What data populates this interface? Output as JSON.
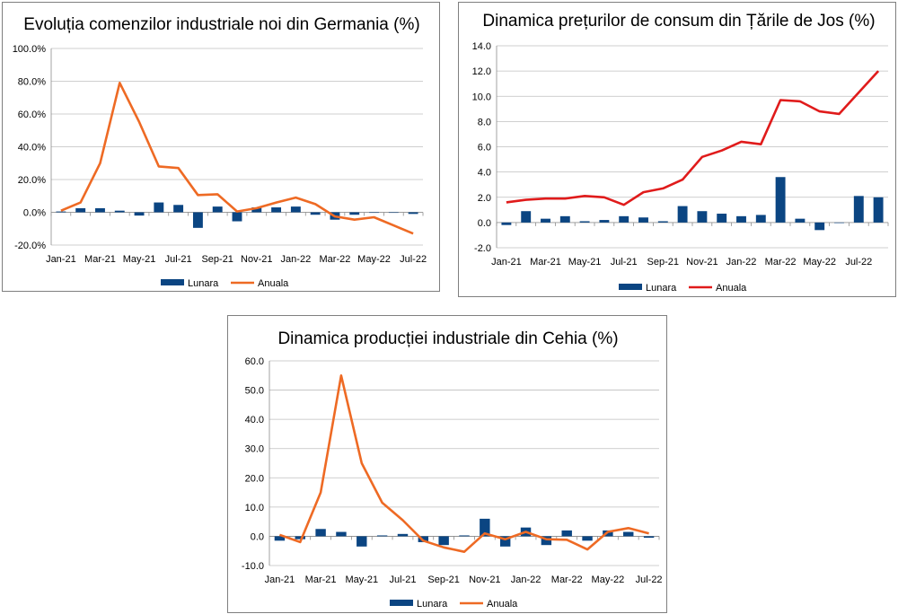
{
  "colors": {
    "bar": "#0b4582",
    "line_orange": "#ee6a24",
    "line_red": "#e01b1b",
    "grid": "#bfbfbf"
  },
  "legend": {
    "monthly": "Lunara",
    "annual": "Anuala"
  },
  "chart_data": [
    {
      "type": "bar+line",
      "title": "Evoluția comenzilor industriale noi din Germania (%)",
      "ylim": [
        -20,
        100
      ],
      "ystep": 20,
      "ytick_labels": [
        "-20.0%",
        "0.0%",
        "20.0%",
        "40.0%",
        "60.0%",
        "80.0%",
        "100.0%"
      ],
      "x_tick_labels": [
        "Jan-21",
        "Mar-21",
        "May-21",
        "Jul-21",
        "Sep-21",
        "Nov-21",
        "Jan-22",
        "Mar-22",
        "May-22",
        "Jul-22"
      ],
      "categories": [
        "Jan-21",
        "Feb-21",
        "Mar-21",
        "Apr-21",
        "May-21",
        "Jun-21",
        "Jul-21",
        "Aug-21",
        "Sep-21",
        "Oct-21",
        "Nov-21",
        "Dec-21",
        "Jan-22",
        "Feb-22",
        "Mar-22",
        "Apr-22",
        "May-22",
        "Jun-22",
        "Jul-22"
      ],
      "line_color": "line_orange",
      "series": [
        {
          "name": "Lunara",
          "kind": "bar",
          "values": [
            0.5,
            2.5,
            2.5,
            1.0,
            -2.0,
            6.0,
            4.5,
            -9.5,
            3.5,
            -5.5,
            3.0,
            3.0,
            3.5,
            -1.5,
            -4.5,
            -1.5,
            0.0,
            0.0,
            -1.0
          ]
        },
        {
          "name": "Anuala",
          "kind": "line",
          "values": [
            1.0,
            6.0,
            30.0,
            79.0,
            55.0,
            28.0,
            27.0,
            10.5,
            11.0,
            0.5,
            2.5,
            6.0,
            9.0,
            5.0,
            -2.5,
            -4.5,
            -3.0,
            -8.0,
            -13.0
          ]
        }
      ]
    },
    {
      "type": "bar+line",
      "title": "Dinamica prețurilor de consum din Țările de Jos (%)",
      "ylim": [
        -2,
        14
      ],
      "ystep": 2,
      "ytick_labels": [
        "-2.0",
        "0.0",
        "2.0",
        "4.0",
        "6.0",
        "8.0",
        "10.0",
        "12.0",
        "14.0"
      ],
      "x_tick_labels": [
        "Jan-21",
        "Mar-21",
        "May-21",
        "Jul-21",
        "Sep-21",
        "Nov-21",
        "Jan-22",
        "Mar-22",
        "May-22",
        "Jul-22"
      ],
      "categories": [
        "Jan-21",
        "Feb-21",
        "Mar-21",
        "Apr-21",
        "May-21",
        "Jun-21",
        "Jul-21",
        "Aug-21",
        "Sep-21",
        "Oct-21",
        "Nov-21",
        "Dec-21",
        "Jan-22",
        "Feb-22",
        "Mar-22",
        "Apr-22",
        "May-22",
        "Jun-22",
        "Jul-22",
        "Aug-22"
      ],
      "line_color": "line_red",
      "series": [
        {
          "name": "Lunara",
          "kind": "bar",
          "values": [
            -0.2,
            0.9,
            0.3,
            0.5,
            0.1,
            0.2,
            0.5,
            0.4,
            0.1,
            1.3,
            0.9,
            0.7,
            0.5,
            0.6,
            3.6,
            0.3,
            -0.6,
            0.0,
            2.1,
            2.0
          ]
        },
        {
          "name": "Anuala",
          "kind": "line",
          "values": [
            1.6,
            1.8,
            1.9,
            1.9,
            2.1,
            2.0,
            1.4,
            2.4,
            2.7,
            3.4,
            5.2,
            5.7,
            6.4,
            6.2,
            9.7,
            9.6,
            8.8,
            8.6,
            10.3,
            12.0
          ]
        }
      ]
    },
    {
      "type": "bar+line",
      "title": "Dinamica producției industriale din Cehia (%)",
      "ylim": [
        -10,
        60
      ],
      "ystep": 10,
      "ytick_labels": [
        "-10.0",
        "0.0",
        "10.0",
        "20.0",
        "30.0",
        "40.0",
        "50.0",
        "60.0"
      ],
      "x_tick_labels": [
        "Jan-21",
        "Mar-21",
        "May-21",
        "Jul-21",
        "Sep-21",
        "Nov-21",
        "Jan-22",
        "Mar-22",
        "May-22",
        "Jul-22"
      ],
      "categories": [
        "Jan-21",
        "Feb-21",
        "Mar-21",
        "Apr-21",
        "May-21",
        "Jun-21",
        "Jul-21",
        "Aug-21",
        "Sep-21",
        "Oct-21",
        "Nov-21",
        "Dec-21",
        "Jan-22",
        "Feb-22",
        "Mar-22",
        "Apr-22",
        "May-22",
        "Jun-22",
        "Jul-22"
      ],
      "line_color": "line_orange",
      "series": [
        {
          "name": "Lunara",
          "kind": "bar",
          "values": [
            -1.5,
            -1.0,
            2.5,
            1.5,
            -3.5,
            0.3,
            0.8,
            -2.0,
            -3.0,
            0.3,
            6.0,
            -3.5,
            3.0,
            -3.0,
            2.0,
            -1.5,
            2.0,
            1.5,
            -0.5
          ]
        },
        {
          "name": "Anuala",
          "kind": "line",
          "values": [
            0.5,
            -2.0,
            15.0,
            55.0,
            25.0,
            11.5,
            5.5,
            -1.5,
            -3.8,
            -5.3,
            1.0,
            -1.0,
            1.5,
            -1.0,
            -1.2,
            -4.5,
            1.5,
            2.8,
            1.0
          ]
        }
      ]
    }
  ]
}
